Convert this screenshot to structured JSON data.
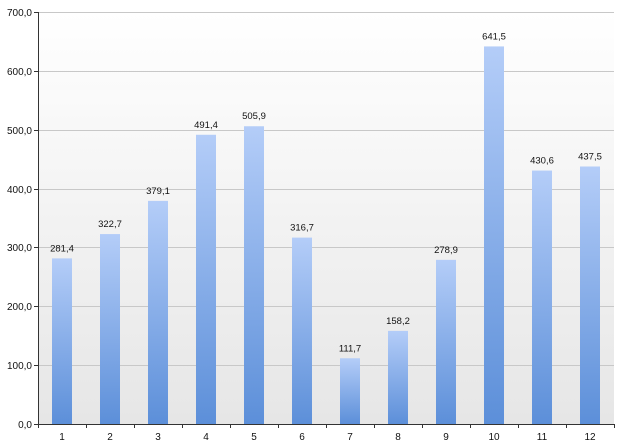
{
  "chart_data": {
    "type": "bar",
    "categories": [
      "1",
      "2",
      "3",
      "4",
      "5",
      "6",
      "7",
      "8",
      "9",
      "10",
      "11",
      "12"
    ],
    "values": [
      281.4,
      322.7,
      379.1,
      491.4,
      505.9,
      316.7,
      111.7,
      158.2,
      278.9,
      641.5,
      430.6,
      437.5
    ],
    "value_labels": [
      "281,4",
      "322,7",
      "379,1",
      "491,4",
      "505,9",
      "316,7",
      "111,7",
      "158,2",
      "278,9",
      "641,5",
      "430,6",
      "437,5"
    ],
    "y_ticks": [
      0,
      100,
      200,
      300,
      400,
      500,
      600,
      700
    ],
    "y_tick_labels": [
      "0,0",
      "100,0",
      "200,0",
      "300,0",
      "400,0",
      "500,0",
      "600,0",
      "700,0"
    ],
    "ylim": [
      0,
      700
    ],
    "grid": true,
    "legend": false,
    "title": "",
    "xlabel": "",
    "ylabel": "",
    "colors": {
      "bar_top": "#b4cdf8",
      "bar_bottom": "#5c8fd9",
      "plot_bg_top": "#ffffff",
      "plot_bg_bottom": "#e6e6e6",
      "grid": "#c8c8c8"
    }
  }
}
